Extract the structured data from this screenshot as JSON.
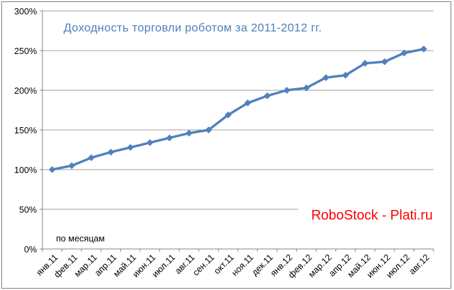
{
  "chart_data": {
    "type": "line",
    "title": "Доходность торговли роботом за 2011-2012 гг.",
    "xlabel": "по месяцам",
    "categories": [
      "янв.11",
      "фев.11",
      "мар.11",
      "апр.11",
      "май.11",
      "июн.11",
      "июл.11",
      "авг.11",
      "сен.11",
      "окт.11",
      "ноя.11",
      "дек.11",
      "янв.12",
      "фев.12",
      "мар.12",
      "апр.12",
      "май.12",
      "июн.12",
      "июл.12",
      "авг.12"
    ],
    "values": [
      100,
      105,
      115,
      122,
      128,
      134,
      140,
      146,
      150,
      169,
      184,
      193,
      200,
      203,
      216,
      219,
      234,
      236,
      247,
      252
    ],
    "ylim": [
      0,
      300
    ],
    "ytick_step": 50,
    "ytick_labels": [
      "0%",
      "50%",
      "100%",
      "150%",
      "200%",
      "250%",
      "300%"
    ],
    "grid": true,
    "legend_position": "none",
    "marker": "diamond",
    "colors": {
      "series": "#4F81BD",
      "title": "#4F81BD",
      "gridline": "#9C9C9C",
      "axis": "#808080",
      "tick_text": "#000000"
    }
  },
  "watermark": {
    "text": "RoboStock - Plati.ru",
    "color": "#FF0000"
  }
}
